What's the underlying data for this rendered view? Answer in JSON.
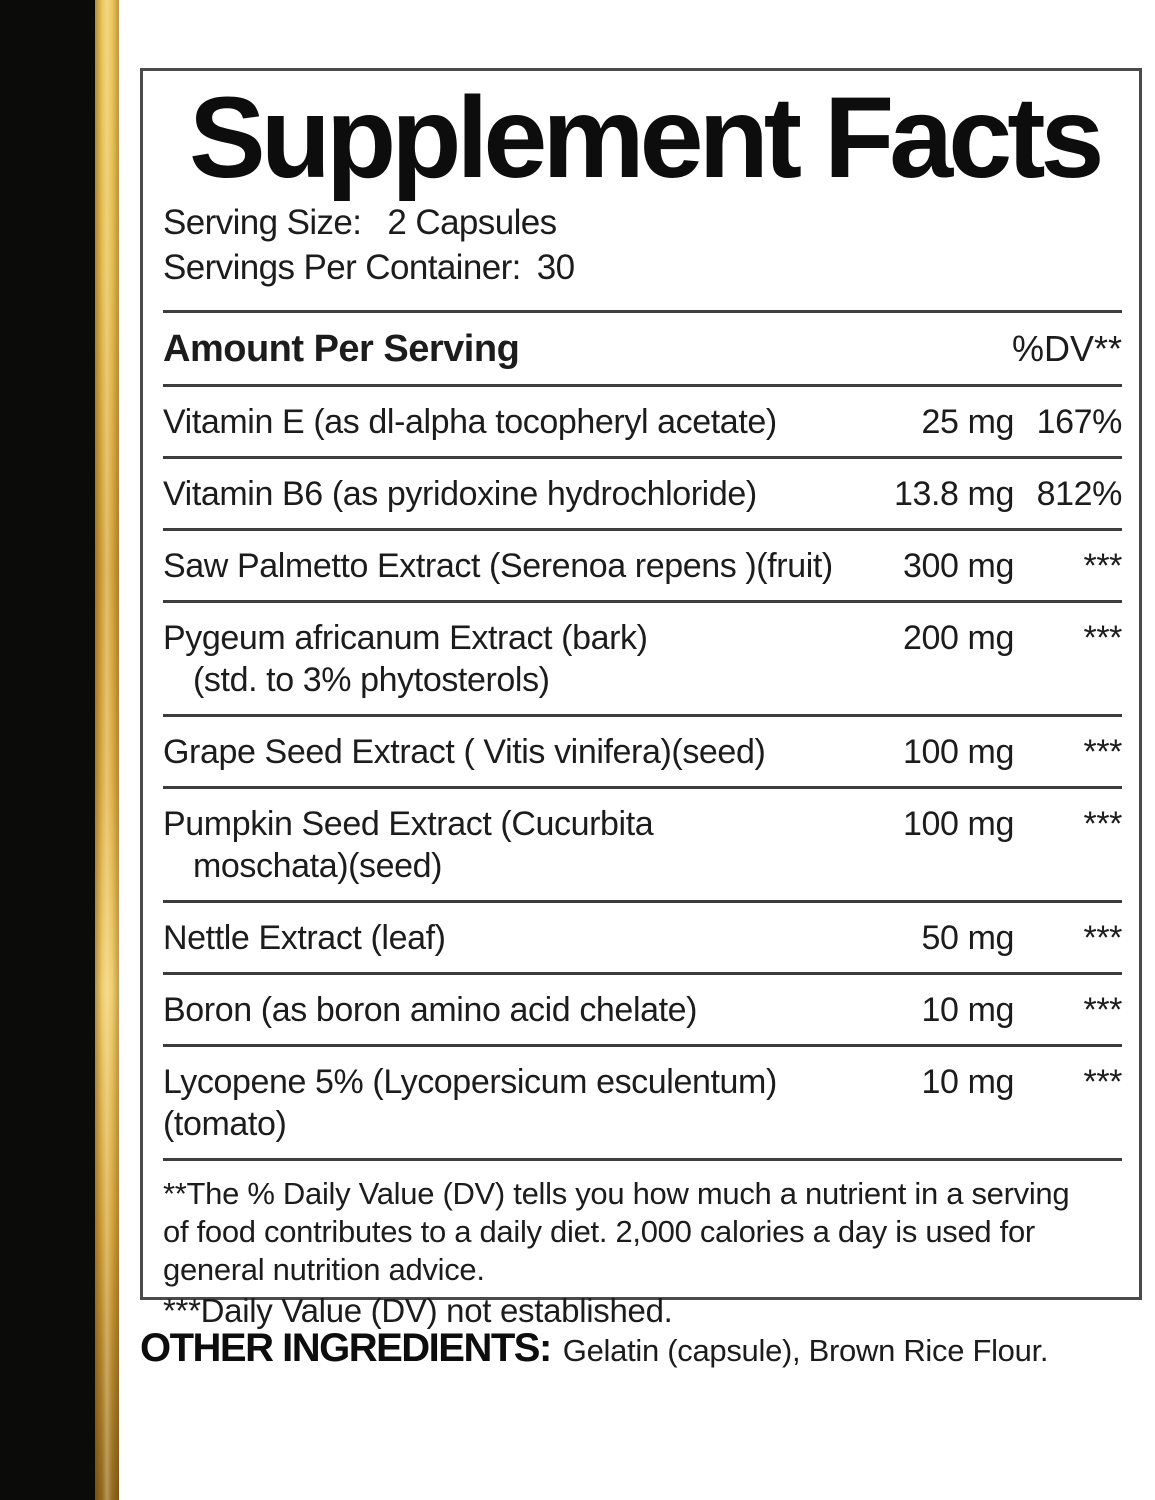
{
  "panel": {
    "title": "Supplement Facts",
    "serving_size_label": "Serving Size:",
    "serving_size_value": "2 Capsules",
    "servings_per_container_label": "Servings Per Container:",
    "servings_per_container_value": "30",
    "amount_header": "Amount Per Serving",
    "dv_header": "%DV**",
    "rows": [
      {
        "name": "Vitamin E (as dl-alpha tocopheryl acetate)",
        "amount": "25 mg",
        "dv": "167%"
      },
      {
        "name": "Vitamin B6 (as pyridoxine hydrochloride)",
        "amount": "13.8 mg",
        "dv": "812%"
      },
      {
        "name": "Saw Palmetto Extract (Serenoa repens )(fruit)",
        "amount": "300 mg",
        "dv": "***"
      },
      {
        "name": "Pygeum africanum Extract (bark)",
        "name2": "(std. to 3% phytosterols)",
        "amount": "200 mg",
        "dv": "***"
      },
      {
        "name": "Grape Seed Extract ( Vitis vinifera)(seed)",
        "amount": "100 mg",
        "dv": "***"
      },
      {
        "name": "Pumpkin Seed Extract (Cucurbita",
        "name2": "moschata)(seed)",
        "amount": "100 mg",
        "dv": "***"
      },
      {
        "name": "Nettle Extract (leaf)",
        "amount": "50 mg",
        "dv": "***"
      },
      {
        "name": "Boron (as boron amino acid chelate)",
        "amount": "10 mg",
        "dv": "***"
      },
      {
        "name": "Lycopene 5% (Lycopersicum esculentum)(tomato)",
        "amount": "10 mg",
        "dv": "***"
      }
    ],
    "footnotes": [
      "**The % Daily Value (DV) tells you how much a nutrient in a serving",
      "of food contributes to a daily diet. 2,000 calories a day is used for",
      "general nutrition advice.",
      "***Daily Value (DV) not established."
    ]
  },
  "other_ingredients": {
    "label": "OTHER INGREDIENTS:",
    "value": "Gelatin (capsule), Brown Rice Flour."
  },
  "colors": {
    "background": "#ffffff",
    "text": "#1c1c1c",
    "rule": "#3d3d3d",
    "box_border": "#4a4a4a",
    "black_band": "#0b0b0a",
    "gold_gradient": [
      "#ecc75b",
      "#e5bd4f",
      "#d3a23a",
      "#ddae46",
      "#f0ce6c",
      "#946a1d"
    ]
  }
}
